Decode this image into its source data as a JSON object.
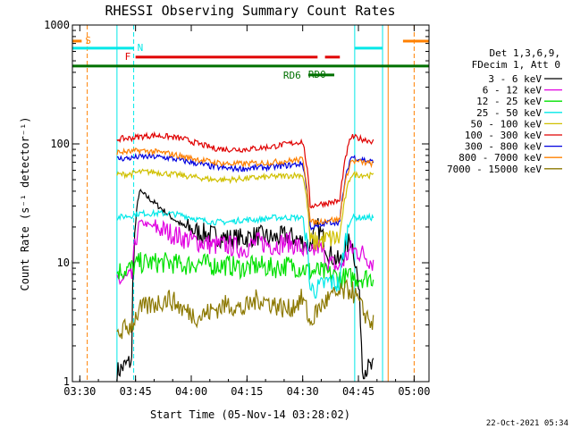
{
  "chart_data": {
    "type": "line",
    "title": "RHESSI Observing Summary Count Rates",
    "xlabel": "Start Time (05-Nov-14 03:28:02)",
    "ylabel": "Count Rate (s⁻¹ detector⁻¹)",
    "yscale": "log",
    "ylim": [
      1,
      1000
    ],
    "xlim_minutes": [
      0,
      96
    ],
    "x_units": "minutes after 03:28:02",
    "x_ticks": [
      {
        "t": 2,
        "label": "03:30"
      },
      {
        "t": 17,
        "label": "03:45"
      },
      {
        "t": 32,
        "label": "04:00"
      },
      {
        "t": 47,
        "label": "04:15"
      },
      {
        "t": 62,
        "label": "04:30"
      },
      {
        "t": 77,
        "label": "04:45"
      },
      {
        "t": 92,
        "label": "05:00"
      }
    ],
    "y_ticks": [
      {
        "v": 1,
        "label": "1"
      },
      {
        "v": 10,
        "label": "10"
      },
      {
        "v": 100,
        "label": "100"
      },
      {
        "v": 1000,
        "label": "1000"
      }
    ],
    "legend_header": [
      "Det 1,3,6,9,",
      "FDecim 1, Att 0"
    ],
    "series": [
      {
        "name": "3 - 6 keV",
        "color": "#000000",
        "t": [
          12,
          16,
          18,
          22,
          26,
          30,
          34,
          38,
          42,
          46,
          50,
          54,
          58,
          62,
          64,
          66,
          69,
          72,
          75,
          78,
          81
        ],
        "values": [
          1.2,
          1.5,
          40,
          32,
          25,
          20,
          18,
          17,
          16,
          16,
          17,
          16,
          17,
          15,
          14,
          20,
          12,
          10,
          16,
          1.3,
          1.3
        ]
      },
      {
        "name": "6 - 12 keV",
        "color": "#e000e0",
        "t": [
          12,
          16,
          18,
          22,
          26,
          30,
          34,
          38,
          42,
          46,
          50,
          54,
          58,
          62,
          64,
          66,
          69,
          72,
          75,
          78,
          81
        ],
        "values": [
          7,
          7.5,
          22,
          20,
          18,
          16,
          15,
          14,
          14,
          13,
          15,
          14,
          15,
          13,
          11,
          14,
          10,
          9,
          13,
          12,
          10
        ]
      },
      {
        "name": "12 - 25 keV",
        "color": "#00e000",
        "t": [
          12,
          16,
          18,
          22,
          26,
          30,
          34,
          38,
          42,
          46,
          50,
          54,
          58,
          62,
          64,
          66,
          69,
          72,
          75,
          78,
          81
        ],
        "values": [
          8.5,
          9,
          10,
          10,
          10,
          9.5,
          10,
          9.5,
          9.5,
          9,
          9.5,
          9,
          9.5,
          9,
          8.5,
          8.5,
          8,
          7.5,
          7.5,
          7.5,
          7.5
        ]
      },
      {
        "name": "25 - 50 keV",
        "color": "#00e8e8",
        "t": [
          12,
          16,
          18,
          22,
          26,
          30,
          34,
          38,
          42,
          46,
          50,
          54,
          58,
          62,
          64,
          66,
          69,
          72,
          75,
          78,
          81
        ],
        "values": [
          24,
          25,
          26,
          26,
          26,
          25,
          23,
          22,
          22,
          23,
          23,
          24,
          24,
          24,
          6,
          6,
          7,
          6.5,
          24,
          24,
          24
        ]
      },
      {
        "name": "50 - 100 keV",
        "color": "#d0c000",
        "t": [
          12,
          16,
          18,
          22,
          26,
          30,
          34,
          38,
          42,
          46,
          50,
          54,
          58,
          62,
          64,
          66,
          69,
          72,
          75,
          78,
          81
        ],
        "values": [
          55,
          56,
          58,
          58,
          56,
          54,
          52,
          50,
          50,
          51,
          52,
          53,
          54,
          55,
          15,
          15,
          16,
          16,
          55,
          55,
          54
        ]
      },
      {
        "name": "100 - 300 keV",
        "color": "#e00000",
        "t": [
          12,
          16,
          18,
          22,
          26,
          30,
          34,
          38,
          42,
          46,
          50,
          54,
          58,
          62,
          64,
          66,
          69,
          72,
          75,
          78,
          81
        ],
        "values": [
          110,
          112,
          115,
          118,
          115,
          110,
          100,
          92,
          90,
          90,
          92,
          95,
          100,
          105,
          30,
          31,
          32,
          33,
          115,
          110,
          105
        ]
      },
      {
        "name": "300 - 800 keV",
        "color": "#0000e0",
        "t": [
          12,
          16,
          18,
          22,
          26,
          30,
          34,
          38,
          42,
          46,
          50,
          54,
          58,
          62,
          64,
          66,
          69,
          72,
          75,
          78,
          81
        ],
        "values": [
          75,
          76,
          78,
          78,
          76,
          72,
          68,
          64,
          62,
          62,
          63,
          64,
          66,
          68,
          20,
          20,
          22,
          22,
          78,
          74,
          70
        ]
      },
      {
        "name": "800 - 7000 keV",
        "color": "#ff8000",
        "t": [
          12,
          16,
          18,
          22,
          26,
          30,
          34,
          38,
          42,
          46,
          50,
          54,
          58,
          62,
          64,
          66,
          69,
          72,
          75,
          78,
          81
        ],
        "values": [
          85,
          86,
          88,
          86,
          83,
          78,
          74,
          70,
          68,
          68,
          69,
          70,
          72,
          74,
          22,
          22,
          23,
          23,
          72,
          70,
          68
        ]
      },
      {
        "name": "7000 - 15000 keV",
        "color": "#8c7800",
        "t": [
          12,
          16,
          18,
          22,
          26,
          30,
          34,
          38,
          42,
          46,
          50,
          54,
          58,
          62,
          64,
          66,
          69,
          72,
          75,
          78,
          81
        ],
        "values": [
          2.5,
          3,
          4,
          4.5,
          5,
          4,
          3.5,
          4,
          4.5,
          4,
          5,
          4.5,
          4,
          5,
          3,
          4,
          5,
          5.5,
          6,
          4,
          3
        ]
      }
    ],
    "flag_bars": [
      {
        "label": "S",
        "color": "#ff8000",
        "level_frac": 0.955,
        "segments": [
          [
            0,
            2.5
          ],
          [
            89,
            96
          ]
        ]
      },
      {
        "label": "N",
        "color": "#00e8e8",
        "level_frac": 0.935,
        "segments": [
          [
            0,
            16.5
          ],
          [
            76,
            83.5
          ]
        ]
      },
      {
        "label": "F",
        "color": "#e00000",
        "level_frac": 0.91,
        "segments": [
          [
            17,
            66
          ],
          [
            68,
            72
          ]
        ]
      },
      {
        "label": "RD0",
        "color": "#007000",
        "level_frac": 0.885,
        "segments": [
          [
            0,
            96
          ]
        ]
      },
      {
        "label": "RD6",
        "color": "#007000",
        "level_frac": 0.86,
        "segments": [
          [
            63.5,
            70.5
          ]
        ]
      }
    ],
    "vertical_markers": [
      {
        "t": 4,
        "color": "#ff8000",
        "dashed": true
      },
      {
        "t": 12,
        "color": "#00e8e8",
        "dashed": false
      },
      {
        "t": 16.5,
        "color": "#00e8e8",
        "dashed": true
      },
      {
        "t": 76,
        "color": "#00e8e8",
        "dashed": false
      },
      {
        "t": 83.5,
        "color": "#00e8e8",
        "dashed": false
      },
      {
        "t": 85,
        "color": "#ff8000",
        "dashed": false
      },
      {
        "t": 92,
        "color": "#ff8000",
        "dashed": true
      }
    ]
  },
  "footer": {
    "date_stamp": "22-Oct-2021 05:34"
  }
}
